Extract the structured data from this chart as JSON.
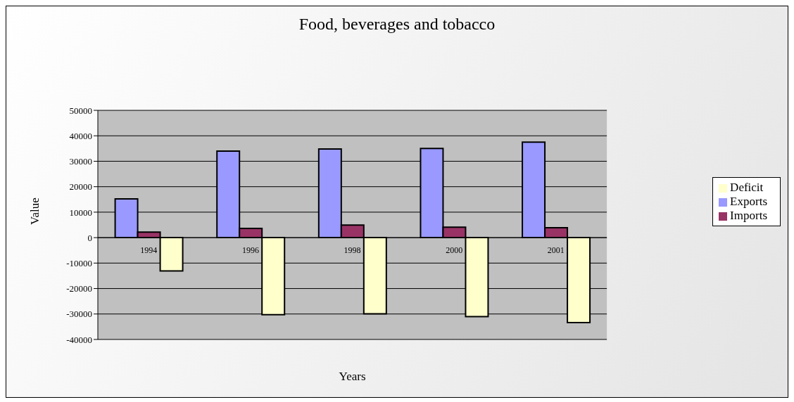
{
  "chart_data": {
    "type": "bar",
    "title": "Food, beverages and tobacco",
    "xlabel": "Years",
    "ylabel": "Value",
    "categories": [
      "1994",
      "1996",
      "1998",
      "2000",
      "2001"
    ],
    "series": [
      {
        "name": "Exports",
        "color": "#9999ff",
        "values": [
          15200,
          34000,
          34800,
          35000,
          37500
        ]
      },
      {
        "name": "Imports",
        "color": "#993366",
        "values": [
          2200,
          3600,
          4900,
          4100,
          3900
        ]
      },
      {
        "name": "Deficit",
        "color": "#ffffcc",
        "values": [
          -13100,
          -30300,
          -29900,
          -31000,
          -33400
        ]
      }
    ],
    "ylim": [
      -40000,
      50000
    ],
    "yticks": [
      -40000,
      -30000,
      -20000,
      -10000,
      0,
      10000,
      20000,
      30000,
      40000,
      50000
    ],
    "grid": "y",
    "legend": "right"
  }
}
